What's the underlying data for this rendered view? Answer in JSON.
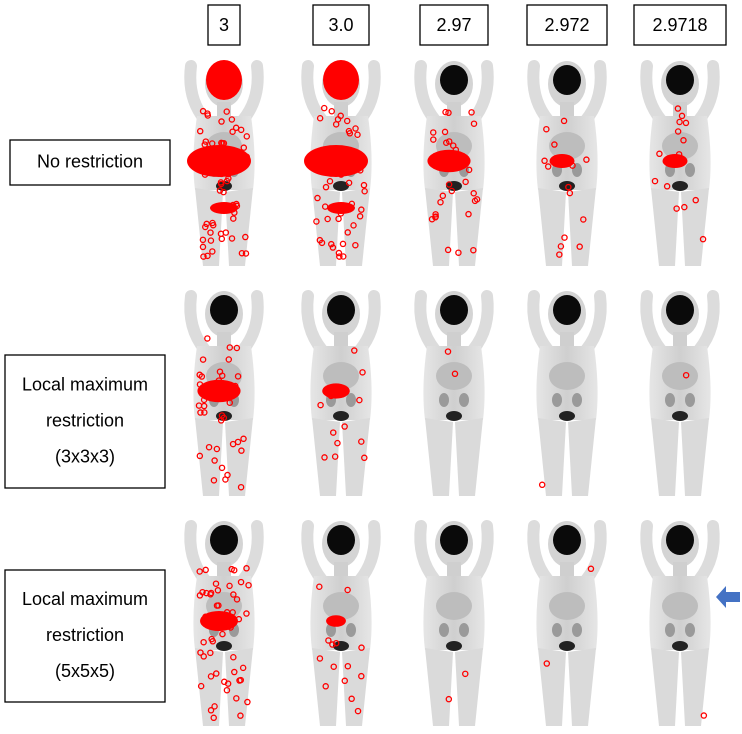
{
  "columns": [
    "3",
    "3.0",
    "2.97",
    "2.972",
    "2.9718"
  ],
  "rows": [
    {
      "lines": [
        "No restriction"
      ]
    },
    {
      "lines": [
        "Local maximum",
        "restriction",
        "(3x3x3)"
      ]
    },
    {
      "lines": [
        "Local maximum",
        "restriction",
        "(5x5x5)"
      ]
    }
  ]
}
